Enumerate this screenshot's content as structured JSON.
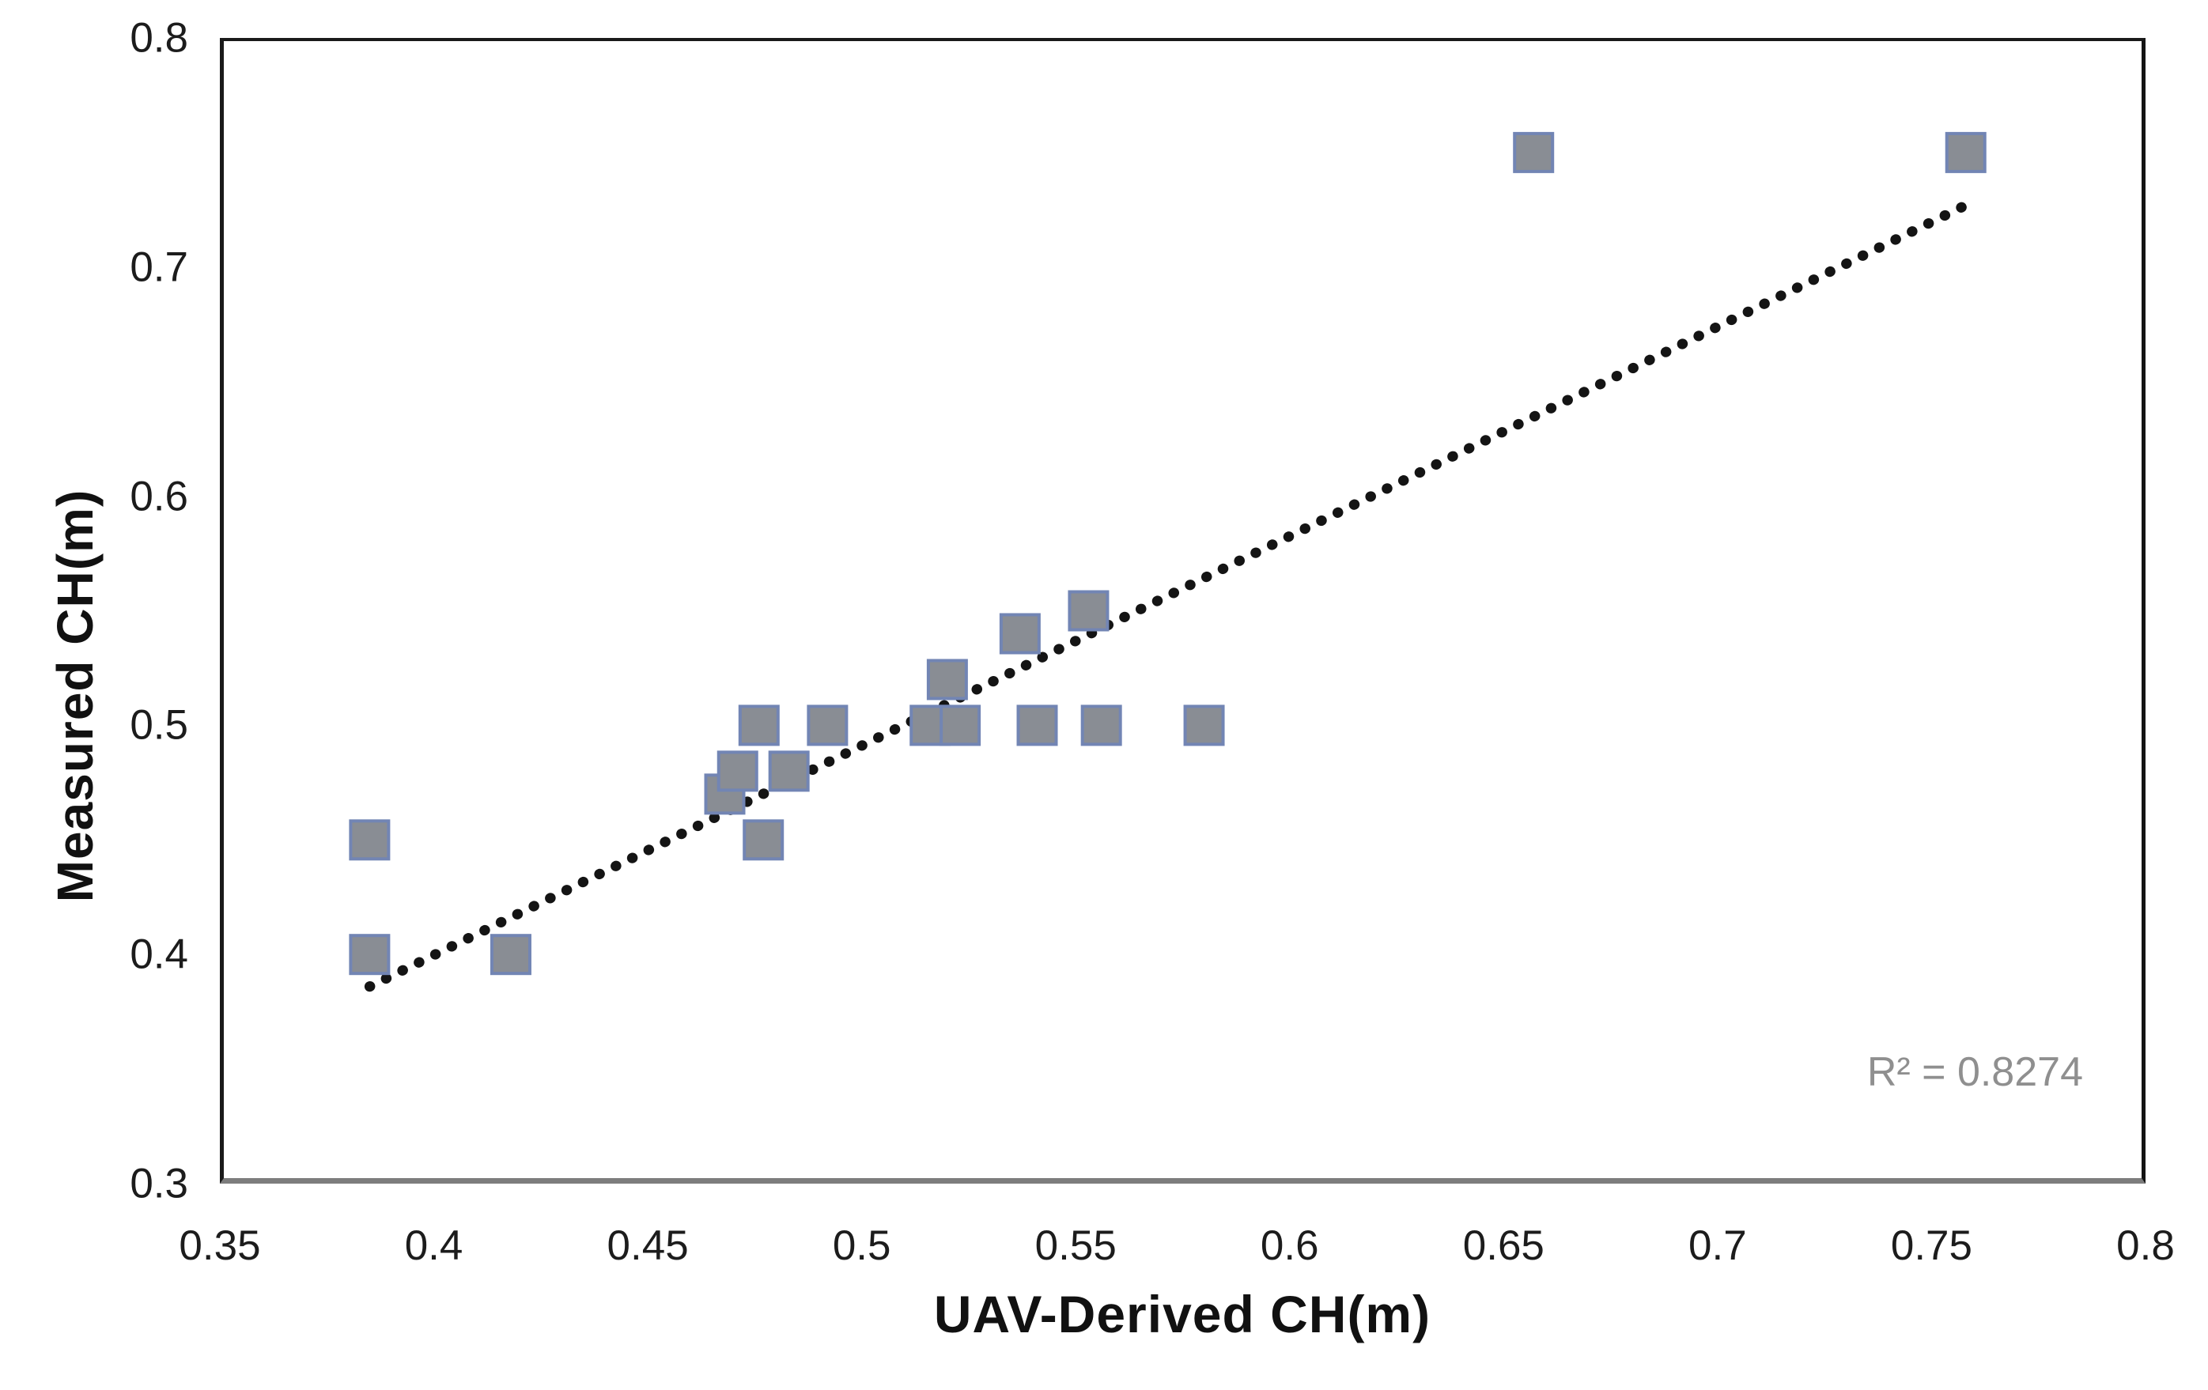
{
  "page": {
    "background_color": "#ffffff"
  },
  "chart_data": {
    "type": "scatter",
    "title": "",
    "xlabel": "UAV-Derived CH(m)",
    "ylabel": "Measured CH(m)",
    "xlim": [
      0.35,
      0.8
    ],
    "ylim": [
      0.3,
      0.8
    ],
    "grid": false,
    "legend": null,
    "x_ticks": [
      {
        "value": 0.35,
        "label": "0.35"
      },
      {
        "value": 0.4,
        "label": "0.4"
      },
      {
        "value": 0.45,
        "label": "0.45"
      },
      {
        "value": 0.5,
        "label": "0.5"
      },
      {
        "value": 0.55,
        "label": "0.55"
      },
      {
        "value": 0.6,
        "label": "0.6"
      },
      {
        "value": 0.65,
        "label": "0.65"
      },
      {
        "value": 0.7,
        "label": "0.7"
      },
      {
        "value": 0.75,
        "label": "0.75"
      },
      {
        "value": 0.8,
        "label": "0.8"
      }
    ],
    "y_ticks": [
      {
        "value": 0.3,
        "label": "0.3"
      },
      {
        "value": 0.4,
        "label": "0.4"
      },
      {
        "value": 0.5,
        "label": "0.5"
      },
      {
        "value": 0.6,
        "label": "0.6"
      },
      {
        "value": 0.7,
        "label": "0.7"
      },
      {
        "value": 0.8,
        "label": "0.8"
      }
    ],
    "points": [
      [
        0.385,
        0.45
      ],
      [
        0.385,
        0.4
      ],
      [
        0.418,
        0.4
      ],
      [
        0.468,
        0.47
      ],
      [
        0.471,
        0.48
      ],
      [
        0.477,
        0.45
      ],
      [
        0.476,
        0.5
      ],
      [
        0.483,
        0.48
      ],
      [
        0.492,
        0.5
      ],
      [
        0.516,
        0.5
      ],
      [
        0.523,
        0.5
      ],
      [
        0.52,
        0.52
      ],
      [
        0.537,
        0.54
      ],
      [
        0.541,
        0.5
      ],
      [
        0.553,
        0.55
      ],
      [
        0.556,
        0.5
      ],
      [
        0.58,
        0.5
      ],
      [
        0.657,
        0.75
      ],
      [
        0.758,
        0.75
      ]
    ],
    "marker": {
      "shape": "square",
      "size": 48,
      "fill": "#898d94",
      "stroke": "#7285b4",
      "stroke_width": 4
    },
    "trendline": {
      "style": "dotted",
      "color": "#141414",
      "x1": 0.385,
      "y1": 0.386,
      "x2": 0.758,
      "y2": 0.727
    },
    "annotation": {
      "text": "R² = 0.8274",
      "color": "#8f8f8f"
    },
    "frame_color": "#1a1a1a",
    "frame_bottom_color": "#7d7d7d"
  }
}
